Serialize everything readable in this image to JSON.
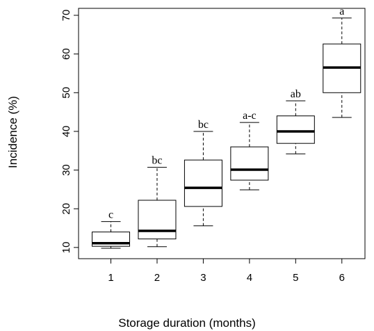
{
  "chart_data": {
    "type": "box",
    "x_label": "Storage duration (months)",
    "y_label": "Incidence (%)",
    "x": [
      1,
      2,
      3,
      4,
      5,
      6
    ],
    "xlim": [
      0.3,
      6.5
    ],
    "xticks": [
      1,
      2,
      3,
      4,
      5,
      6
    ],
    "ylim": [
      7.1,
      71.8
    ],
    "yticks": [
      10,
      20,
      30,
      40,
      50,
      60,
      70
    ],
    "min": [
      9.8,
      10.2,
      15.6,
      24.9,
      34.2,
      43.6
    ],
    "q1": [
      10.3,
      12.2,
      20.6,
      27.4,
      36.9,
      50.0
    ],
    "median": [
      11.1,
      14.3,
      25.4,
      30.1,
      40.0,
      56.5
    ],
    "q3": [
      14.0,
      22.2,
      32.6,
      36.0,
      44.0,
      62.6
    ],
    "max": [
      16.7,
      30.7,
      40.0,
      42.3,
      47.9,
      69.3
    ],
    "annotations": [
      "c",
      "bc",
      "bc",
      "a-c",
      "ab",
      "a"
    ],
    "color": "#ffffff"
  }
}
